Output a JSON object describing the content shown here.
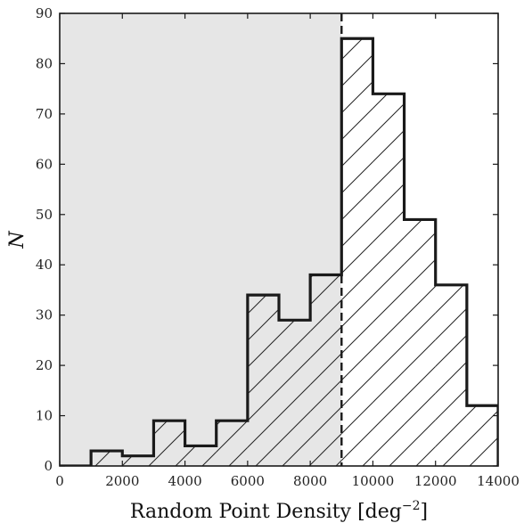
{
  "chart_data": {
    "type": "histogram",
    "bin_width": 1000,
    "bins": [
      {
        "x0": 0,
        "x1": 1000,
        "count": 0
      },
      {
        "x0": 1000,
        "x1": 2000,
        "count": 3
      },
      {
        "x0": 2000,
        "x1": 3000,
        "count": 2
      },
      {
        "x0": 3000,
        "x1": 4000,
        "count": 9
      },
      {
        "x0": 4000,
        "x1": 5000,
        "count": 4
      },
      {
        "x0": 5000,
        "x1": 6000,
        "count": 9
      },
      {
        "x0": 6000,
        "x1": 7000,
        "count": 34
      },
      {
        "x0": 7000,
        "x1": 8000,
        "count": 29
      },
      {
        "x0": 8000,
        "x1": 9000,
        "count": 38
      },
      {
        "x0": 9000,
        "x1": 10000,
        "count": 85
      },
      {
        "x0": 10000,
        "x1": 11000,
        "count": 74
      },
      {
        "x0": 11000,
        "x1": 12000,
        "count": 49
      },
      {
        "x0": 12000,
        "x1": 13000,
        "count": 36
      },
      {
        "x0": 13000,
        "x1": 14000,
        "count": 12
      }
    ],
    "threshold_x": 9000,
    "shaded_region": [
      0,
      9000
    ],
    "xlim": [
      0,
      14000
    ],
    "ylim": [
      0,
      90
    ],
    "xticks": [
      0,
      2000,
      4000,
      6000,
      8000,
      10000,
      12000,
      14000
    ],
    "yticks": [
      0,
      10,
      20,
      30,
      40,
      50,
      60,
      70,
      80,
      90
    ],
    "xlabel_main": "Random Point Density [deg",
    "xlabel_sup": "−2",
    "xlabel_end": "]",
    "ylabel": "N",
    "grid": false,
    "colors": {
      "shade": "#e6e6e6",
      "line": "#1a1a1a",
      "hatch": "#222222"
    }
  }
}
